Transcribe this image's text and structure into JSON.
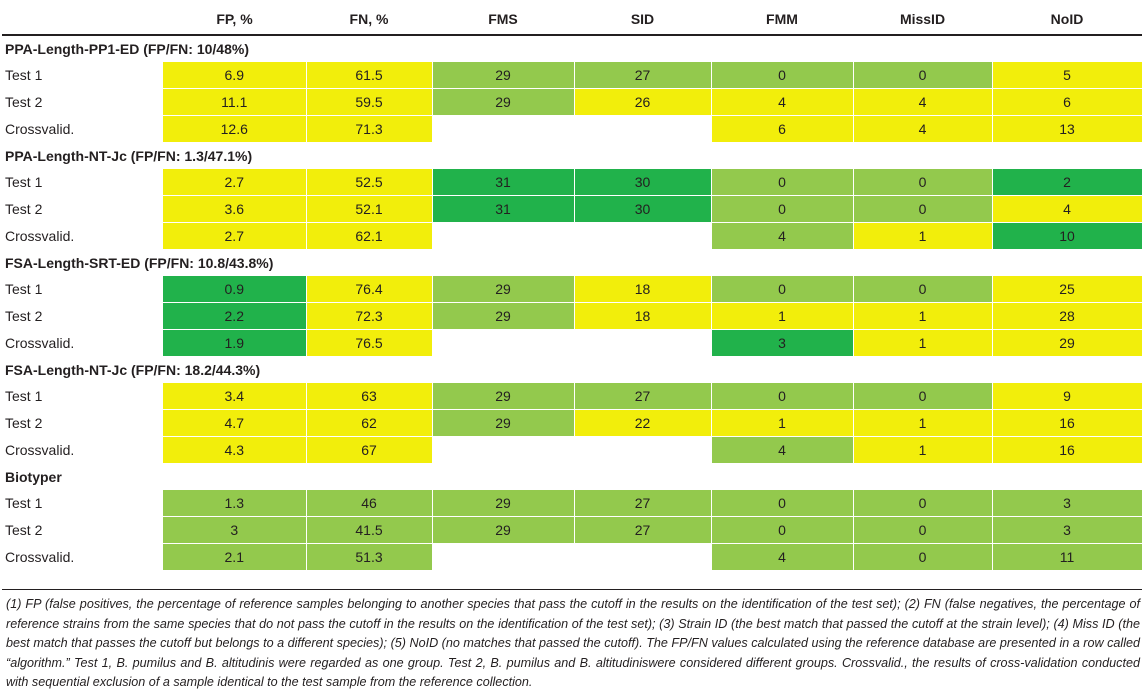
{
  "headers": [
    "",
    "FP, %",
    "FN, %",
    "FMS",
    "SID",
    "FMM",
    "MissID",
    "NoID"
  ],
  "colors": {
    "yellow": "#f2ee0b",
    "green": "#93c94d",
    "dark_green": "#21b24b"
  },
  "groups": [
    {
      "title": "PPA-Length-PP1-ED (FP/FN: 10/48%)",
      "rows": [
        {
          "label": "Test 1",
          "cells": [
            {
              "v": "6.9",
              "c": "y"
            },
            {
              "v": "61.5",
              "c": "y"
            },
            {
              "v": "29",
              "c": "g"
            },
            {
              "v": "27",
              "c": "g"
            },
            {
              "v": "0",
              "c": "g"
            },
            {
              "v": "0",
              "c": "g"
            },
            {
              "v": "5",
              "c": "y"
            }
          ]
        },
        {
          "label": "Test 2",
          "cells": [
            {
              "v": "11.1",
              "c": "y"
            },
            {
              "v": "59.5",
              "c": "y"
            },
            {
              "v": "29",
              "c": "g"
            },
            {
              "v": "26",
              "c": "y"
            },
            {
              "v": "4",
              "c": "y"
            },
            {
              "v": "4",
              "c": "y"
            },
            {
              "v": "6",
              "c": "y"
            }
          ]
        },
        {
          "label": "Crossvalid.",
          "cells": [
            {
              "v": "12.6",
              "c": "y"
            },
            {
              "v": "71.3",
              "c": "y"
            },
            {
              "v": "",
              "c": ""
            },
            {
              "v": "",
              "c": ""
            },
            {
              "v": "6",
              "c": "y"
            },
            {
              "v": "4",
              "c": "y"
            },
            {
              "v": "13",
              "c": "y"
            }
          ]
        }
      ]
    },
    {
      "title": "PPA-Length-NT-Jc (FP/FN: 1.3/47.1%)",
      "rows": [
        {
          "label": "Test 1",
          "cells": [
            {
              "v": "2.7",
              "c": "y"
            },
            {
              "v": "52.5",
              "c": "y"
            },
            {
              "v": "31",
              "c": "dg"
            },
            {
              "v": "30",
              "c": "dg"
            },
            {
              "v": "0",
              "c": "g"
            },
            {
              "v": "0",
              "c": "g"
            },
            {
              "v": "2",
              "c": "dg"
            }
          ]
        },
        {
          "label": "Test 2",
          "cells": [
            {
              "v": "3.6",
              "c": "y"
            },
            {
              "v": "52.1",
              "c": "y"
            },
            {
              "v": "31",
              "c": "dg"
            },
            {
              "v": "30",
              "c": "dg"
            },
            {
              "v": "0",
              "c": "g"
            },
            {
              "v": "0",
              "c": "g"
            },
            {
              "v": "4",
              "c": "y"
            }
          ]
        },
        {
          "label": "Crossvalid.",
          "cells": [
            {
              "v": "2.7",
              "c": "y"
            },
            {
              "v": "62.1",
              "c": "y"
            },
            {
              "v": "",
              "c": ""
            },
            {
              "v": "",
              "c": ""
            },
            {
              "v": "4",
              "c": "g"
            },
            {
              "v": "1",
              "c": "y"
            },
            {
              "v": "10",
              "c": "dg"
            }
          ]
        }
      ]
    },
    {
      "title": "FSA-Length-SRT-ED (FP/FN: 10.8/43.8%)",
      "rows": [
        {
          "label": "Test 1",
          "cells": [
            {
              "v": "0.9",
              "c": "dg"
            },
            {
              "v": "76.4",
              "c": "y"
            },
            {
              "v": "29",
              "c": "g"
            },
            {
              "v": "18",
              "c": "y"
            },
            {
              "v": "0",
              "c": "g"
            },
            {
              "v": "0",
              "c": "g"
            },
            {
              "v": "25",
              "c": "y"
            }
          ]
        },
        {
          "label": "Test 2",
          "cells": [
            {
              "v": "2.2",
              "c": "dg"
            },
            {
              "v": "72.3",
              "c": "y"
            },
            {
              "v": "29",
              "c": "g"
            },
            {
              "v": "18",
              "c": "y"
            },
            {
              "v": "1",
              "c": "y"
            },
            {
              "v": "1",
              "c": "y"
            },
            {
              "v": "28",
              "c": "y"
            }
          ]
        },
        {
          "label": "Crossvalid.",
          "cells": [
            {
              "v": "1.9",
              "c": "dg"
            },
            {
              "v": "76.5",
              "c": "y"
            },
            {
              "v": "",
              "c": ""
            },
            {
              "v": "",
              "c": ""
            },
            {
              "v": "3",
              "c": "dg"
            },
            {
              "v": "1",
              "c": "y"
            },
            {
              "v": "29",
              "c": "y"
            }
          ]
        }
      ]
    },
    {
      "title": "FSA-Length-NT-Jc (FP/FN: 18.2/44.3%)",
      "rows": [
        {
          "label": "Test 1",
          "cells": [
            {
              "v": "3.4",
              "c": "y"
            },
            {
              "v": "63",
              "c": "y"
            },
            {
              "v": "29",
              "c": "g"
            },
            {
              "v": "27",
              "c": "g"
            },
            {
              "v": "0",
              "c": "g"
            },
            {
              "v": "0",
              "c": "g"
            },
            {
              "v": "9",
              "c": "y"
            }
          ]
        },
        {
          "label": "Test 2",
          "cells": [
            {
              "v": "4.7",
              "c": "y"
            },
            {
              "v": "62",
              "c": "y"
            },
            {
              "v": "29",
              "c": "g"
            },
            {
              "v": "22",
              "c": "y"
            },
            {
              "v": "1",
              "c": "y"
            },
            {
              "v": "1",
              "c": "y"
            },
            {
              "v": "16",
              "c": "y"
            }
          ]
        },
        {
          "label": "Crossvalid.",
          "cells": [
            {
              "v": "4.3",
              "c": "y"
            },
            {
              "v": "67",
              "c": "y"
            },
            {
              "v": "",
              "c": ""
            },
            {
              "v": "",
              "c": ""
            },
            {
              "v": "4",
              "c": "g"
            },
            {
              "v": "1",
              "c": "y"
            },
            {
              "v": "16",
              "c": "y"
            }
          ]
        }
      ]
    },
    {
      "title": "Biotyper",
      "rows": [
        {
          "label": "Test 1",
          "cells": [
            {
              "v": "1.3",
              "c": "g"
            },
            {
              "v": "46",
              "c": "g"
            },
            {
              "v": "29",
              "c": "g"
            },
            {
              "v": "27",
              "c": "g"
            },
            {
              "v": "0",
              "c": "g"
            },
            {
              "v": "0",
              "c": "g"
            },
            {
              "v": "3",
              "c": "g"
            }
          ]
        },
        {
          "label": "Test 2",
          "cells": [
            {
              "v": "3",
              "c": "g"
            },
            {
              "v": "41.5",
              "c": "g"
            },
            {
              "v": "29",
              "c": "g"
            },
            {
              "v": "27",
              "c": "g"
            },
            {
              "v": "0",
              "c": "g"
            },
            {
              "v": "0",
              "c": "g"
            },
            {
              "v": "3",
              "c": "g"
            }
          ]
        },
        {
          "label": "Crossvalid.",
          "cells": [
            {
              "v": "2.1",
              "c": "g"
            },
            {
              "v": "51.3",
              "c": "g"
            },
            {
              "v": "",
              "c": ""
            },
            {
              "v": "",
              "c": ""
            },
            {
              "v": "4",
              "c": "g"
            },
            {
              "v": "0",
              "c": "g"
            },
            {
              "v": "11",
              "c": "g"
            }
          ]
        }
      ]
    }
  ],
  "footnote": "(1) FP (false positives, the percentage of reference samples belonging to another species that pass the cutoff in the results on the identification of the test set); (2) FN (false negatives, the percentage of reference strains from the same species that do not pass the cutoff in the results on the identification of the test set); (3) Strain ID (the best match that passed the cutoff at the strain level); (4) Miss ID (the best match that passes the cutoff but belongs to a different species); (5) NoID (no matches that passed the cutoff). The FP/FN values calculated using the reference database are presented in a row called “algorithm.” Test 1, B. pumilus and B. altitudinis were regarded as one group. Test 2, B. pumilus and B. altitudiniswere considered different groups. Crossvalid., the results of cross-validation conducted with sequential exclusion of a sample identical to the test sample from the reference collection."
}
